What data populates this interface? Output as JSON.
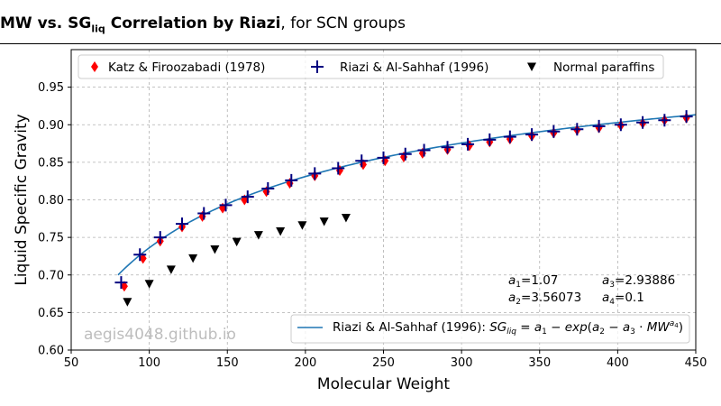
{
  "title": {
    "bold_part1": "MW vs.",
    "bold_part2": "SG",
    "bold_sub": "liq",
    "bold_part3": "Correlation by Riazi",
    "normal_part": ", for SCN groups"
  },
  "watermark": "aegis4048.github.io",
  "chart_data": {
    "type": "scatter",
    "xlabel": "Molecular Weight",
    "ylabel": "Liquid Specific Gravity",
    "xlim": [
      50,
      450
    ],
    "ylim": [
      0.6,
      1.0
    ],
    "xticks": [
      50,
      100,
      150,
      200,
      250,
      300,
      350,
      400,
      450
    ],
    "yticks": [
      0.6,
      0.65,
      0.7,
      0.75,
      0.8,
      0.85,
      0.9,
      0.95
    ],
    "xtick_labels": [
      "50",
      "100",
      "150",
      "200",
      "250",
      "300",
      "350",
      "400",
      "450"
    ],
    "ytick_labels": [
      "0.60",
      "0.65",
      "0.70",
      "0.75",
      "0.80",
      "0.85",
      "0.90",
      "0.95"
    ],
    "grid": true,
    "legend_top": {
      "placement": "top",
      "entries": [
        {
          "label": "Katz & Firoozabadi (1978)",
          "marker": "diamond",
          "color": "#ff0000"
        },
        {
          "label": "Riazi & Al-Sahhaf (1996)",
          "marker": "plus",
          "color": "#000080"
        },
        {
          "label": "Normal paraffins",
          "marker": "triangle-down",
          "color": "#000000"
        }
      ]
    },
    "legend_bottom": {
      "placement": "bottom-right",
      "label_prefix": "Riazi & Al-Sahhaf (1996): ",
      "label_formula": "SG_liq = a1 − exp(a2 − a3 · MW^a4)",
      "color": "#1f77b4"
    },
    "coefficients": {
      "a1": "1.07",
      "a2": "3.56073",
      "a3": "2.93886",
      "a4": "0.1"
    },
    "series": [
      {
        "name": "Katz & Firoozabadi (1978)",
        "marker": "diamond",
        "color": "#ff0000",
        "x": [
          84,
          96,
          107,
          121,
          134,
          147,
          161,
          175,
          190,
          206,
          222,
          237,
          251,
          263,
          275,
          291,
          305,
          318,
          331,
          345,
          359,
          374,
          388,
          402,
          416,
          430,
          444
        ],
        "y": [
          0.685,
          0.722,
          0.745,
          0.764,
          0.778,
          0.789,
          0.8,
          0.811,
          0.822,
          0.832,
          0.839,
          0.847,
          0.852,
          0.857,
          0.862,
          0.867,
          0.872,
          0.877,
          0.881,
          0.885,
          0.889,
          0.893,
          0.896,
          0.899,
          0.902,
          0.906,
          0.909
        ]
      },
      {
        "name": "Riazi & Al-Sahhaf (1996)",
        "marker": "plus",
        "color": "#000080",
        "x": [
          82,
          94,
          107,
          121,
          135,
          149,
          163,
          176,
          191,
          206,
          221,
          236,
          250,
          264,
          276,
          291,
          304,
          318,
          331,
          345,
          359,
          374,
          388,
          402,
          416,
          430,
          444
        ],
        "y": [
          0.69,
          0.727,
          0.75,
          0.768,
          0.782,
          0.793,
          0.804,
          0.815,
          0.826,
          0.835,
          0.842,
          0.852,
          0.856,
          0.861,
          0.866,
          0.87,
          0.874,
          0.88,
          0.884,
          0.887,
          0.891,
          0.894,
          0.898,
          0.9,
          0.903,
          0.906,
          0.911
        ]
      },
      {
        "name": "Normal paraffins",
        "marker": "triangle-down",
        "color": "#000000",
        "x": [
          86,
          100,
          114,
          128,
          142,
          156,
          170,
          184,
          198,
          212,
          226
        ],
        "y": [
          0.664,
          0.688,
          0.707,
          0.722,
          0.734,
          0.744,
          0.753,
          0.758,
          0.766,
          0.771,
          0.776
        ]
      }
    ],
    "curve": {
      "name": "Riazi & Al-Sahhaf (1996)",
      "color": "#1f77b4",
      "x_start": 80,
      "x_end": 450
    }
  }
}
